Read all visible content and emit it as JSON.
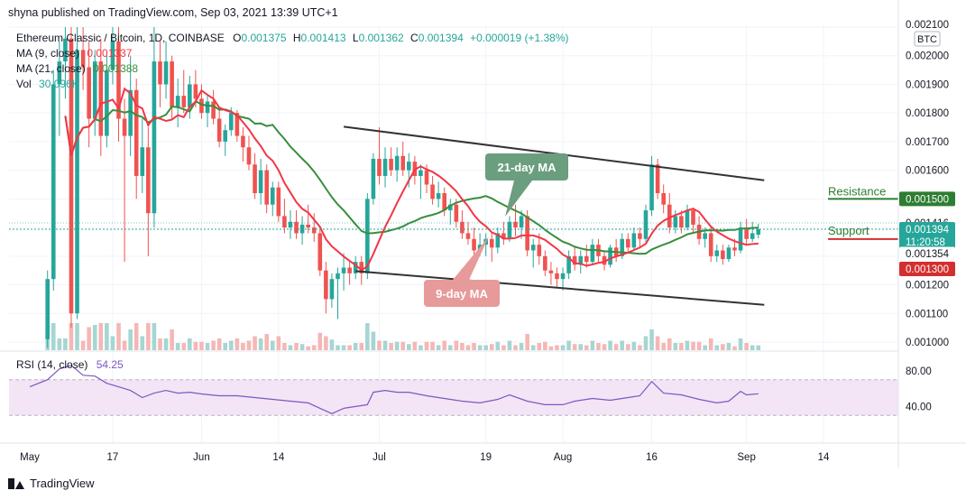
{
  "header": {
    "publisher": "shyna published on TradingView.com, Sep 03, 2021 13:39 UTC+1"
  },
  "legend": {
    "symbol": "Ethereum Classic / Bitcoin, 1D, COINBASE",
    "o_label": "O",
    "o": "0.001375",
    "h_label": "H",
    "h": "0.001413",
    "l_label": "L",
    "l": "0.001362",
    "c_label": "C",
    "c": "0.001394",
    "change": "+0.000019 (+1.38%)",
    "ma9_label": "MA (9, close)",
    "ma9": "0.001337",
    "ma21_label": "MA (21, close)",
    "ma21": "0.001388",
    "vol_label": "Vol",
    "vol": "30.096K"
  },
  "rsi_legend": {
    "label": "RSI (14, close)",
    "value": "54.25"
  },
  "currency": "BTC",
  "price_axis": [
    "0.002100",
    "0.002000",
    "0.001900",
    "0.001800",
    "0.001700",
    "0.001600",
    "0.001500",
    "0.001416",
    "0.001394",
    "0.001354",
    "0.001300",
    "0.001200",
    "0.001100",
    "0.001000"
  ],
  "countdown": "11:20:58",
  "rsi_axis": [
    "80.00",
    "40.00"
  ],
  "time_axis": [
    "May",
    "17",
    "Jun",
    "14",
    "Jul",
    "19",
    "Aug",
    "16",
    "Sep",
    "14"
  ],
  "annotations": {
    "ma21_callout": "21-day MA",
    "ma9_callout": "9-day MA",
    "resistance_label": "Resistance",
    "support_label": "Support"
  },
  "footer": {
    "brand": "TradingView"
  },
  "colors": {
    "up": "#26a69a",
    "down": "#ef5350",
    "ma9": "#f23645",
    "ma21": "#388e3c",
    "rsi": "#7e57c2",
    "rsi_band": "#f3e5f5",
    "resistance": "#2e7d32",
    "support": "#d32f2f",
    "callout21": "#6b9e7e",
    "callout9": "#e79a9a"
  },
  "chart_data": {
    "type": "candlestick",
    "x_range": [
      "2021-05-03",
      "2021-09-14"
    ],
    "ylim": [
      0.00096,
      0.00211
    ],
    "trendline_resistance": [
      [
        "2021-06-25",
        0.001752
      ],
      [
        "2021-09-04",
        0.001565
      ]
    ],
    "trendline_support": [
      [
        "2021-06-27",
        0.001248
      ],
      [
        "2021-09-04",
        0.00113
      ]
    ],
    "resistance_level": 0.0015,
    "support_level": 0.0013,
    "candles": [
      [
        "2021-05-06",
        0.00101,
        0.00125,
        0.00098,
        0.00122
      ],
      [
        "2021-05-07",
        0.00122,
        0.00195,
        0.00118,
        0.0019
      ],
      [
        "2021-05-08",
        0.0019,
        0.00205,
        0.00172,
        0.00198
      ],
      [
        "2021-05-09",
        0.00198,
        0.0021,
        0.00185,
        0.00206
      ],
      [
        "2021-05-10",
        0.00206,
        0.0021,
        0.00105,
        0.0011
      ],
      [
        "2021-05-11",
        0.0011,
        0.0021,
        0.00108,
        0.00202
      ],
      [
        "2021-05-12",
        0.00202,
        0.0021,
        0.00188,
        0.00196
      ],
      [
        "2021-05-13",
        0.00196,
        0.00205,
        0.00168,
        0.00178
      ],
      [
        "2021-05-14",
        0.00178,
        0.00202,
        0.00172,
        0.00198
      ],
      [
        "2021-05-15",
        0.00198,
        0.00206,
        0.00165,
        0.00172
      ],
      [
        "2021-05-16",
        0.00172,
        0.002,
        0.00168,
        0.00195
      ],
      [
        "2021-05-17",
        0.00195,
        0.0021,
        0.0019,
        0.00205
      ],
      [
        "2021-05-18",
        0.00205,
        0.0021,
        0.0017,
        0.00178
      ],
      [
        "2021-05-19",
        0.00178,
        0.00185,
        0.00128,
        0.00172
      ],
      [
        "2021-05-20",
        0.00172,
        0.002,
        0.00165,
        0.00188
      ],
      [
        "2021-05-21",
        0.00188,
        0.00192,
        0.0015,
        0.00158
      ],
      [
        "2021-05-22",
        0.00158,
        0.00178,
        0.00152,
        0.00168
      ],
      [
        "2021-05-23",
        0.00168,
        0.00175,
        0.0013,
        0.00145
      ],
      [
        "2021-05-24",
        0.00145,
        0.0021,
        0.0014,
        0.00198
      ],
      [
        "2021-05-25",
        0.00198,
        0.00205,
        0.00182,
        0.0019
      ],
      [
        "2021-05-26",
        0.0019,
        0.00205,
        0.00185,
        0.00198
      ],
      [
        "2021-05-27",
        0.00198,
        0.002,
        0.00178,
        0.00182
      ],
      [
        "2021-05-28",
        0.00182,
        0.00192,
        0.00175,
        0.00186
      ],
      [
        "2021-05-29",
        0.00186,
        0.00195,
        0.0018,
        0.00182
      ],
      [
        "2021-05-30",
        0.00182,
        0.00193,
        0.00178,
        0.0019
      ],
      [
        "2021-05-31",
        0.0019,
        0.00195,
        0.00182,
        0.00185
      ],
      [
        "2021-06-01",
        0.00185,
        0.0019,
        0.00178,
        0.0018
      ],
      [
        "2021-06-02",
        0.0018,
        0.00186,
        0.00175,
        0.00184
      ],
      [
        "2021-06-03",
        0.00184,
        0.00188,
        0.00176,
        0.00178
      ],
      [
        "2021-06-04",
        0.00178,
        0.00182,
        0.00168,
        0.0017
      ],
      [
        "2021-06-05",
        0.0017,
        0.00176,
        0.00165,
        0.00174
      ],
      [
        "2021-06-06",
        0.00174,
        0.00182,
        0.00172,
        0.0018
      ],
      [
        "2021-06-07",
        0.0018,
        0.00181,
        0.0017,
        0.00172
      ],
      [
        "2021-06-08",
        0.00172,
        0.00175,
        0.00163,
        0.00168
      ],
      [
        "2021-06-09",
        0.00168,
        0.00172,
        0.0016,
        0.00162
      ],
      [
        "2021-06-10",
        0.00162,
        0.00166,
        0.0015,
        0.00152
      ],
      [
        "2021-06-11",
        0.00152,
        0.00164,
        0.00148,
        0.0016
      ],
      [
        "2021-06-12",
        0.0016,
        0.00162,
        0.00145,
        0.00148
      ],
      [
        "2021-06-13",
        0.00148,
        0.00156,
        0.00144,
        0.00154
      ],
      [
        "2021-06-14",
        0.00154,
        0.00156,
        0.00142,
        0.00144
      ],
      [
        "2021-06-15",
        0.00144,
        0.0015,
        0.00138,
        0.0014
      ],
      [
        "2021-06-16",
        0.0014,
        0.00146,
        0.00136,
        0.00142
      ],
      [
        "2021-06-17",
        0.00142,
        0.00146,
        0.00136,
        0.00138
      ],
      [
        "2021-06-18",
        0.00138,
        0.00144,
        0.00134,
        0.00141
      ],
      [
        "2021-06-19",
        0.00141,
        0.00148,
        0.00138,
        0.0014
      ],
      [
        "2021-06-20",
        0.0014,
        0.00145,
        0.00135,
        0.00138
      ],
      [
        "2021-06-21",
        0.00138,
        0.0014,
        0.00123,
        0.00125
      ],
      [
        "2021-06-22",
        0.00125,
        0.00128,
        0.0011,
        0.00115
      ],
      [
        "2021-06-23",
        0.00115,
        0.00124,
        0.00112,
        0.00122
      ],
      [
        "2021-06-24",
        0.00122,
        0.00126,
        0.00108,
        0.00124
      ],
      [
        "2021-06-25",
        0.00124,
        0.00131,
        0.00118,
        0.00126
      ],
      [
        "2021-06-26",
        0.00126,
        0.00128,
        0.0012,
        0.00124
      ],
      [
        "2021-06-27",
        0.00124,
        0.0013,
        0.00122,
        0.00128
      ],
      [
        "2021-06-28",
        0.00128,
        0.0013,
        0.0012,
        0.00124
      ],
      [
        "2021-06-29",
        0.00124,
        0.00152,
        0.00122,
        0.0015
      ],
      [
        "2021-06-30",
        0.0015,
        0.00166,
        0.00148,
        0.00164
      ],
      [
        "2021-07-01",
        0.00164,
        0.00175,
        0.00155,
        0.00158
      ],
      [
        "2021-07-02",
        0.00158,
        0.00168,
        0.00154,
        0.00164
      ],
      [
        "2021-07-03",
        0.00164,
        0.00168,
        0.00158,
        0.0016
      ],
      [
        "2021-07-04",
        0.0016,
        0.00168,
        0.00156,
        0.00165
      ],
      [
        "2021-07-05",
        0.00165,
        0.0017,
        0.00158,
        0.0016
      ],
      [
        "2021-07-06",
        0.0016,
        0.00166,
        0.00154,
        0.00163
      ],
      [
        "2021-07-07",
        0.00163,
        0.00165,
        0.00155,
        0.00158
      ],
      [
        "2021-07-08",
        0.00158,
        0.00162,
        0.0015,
        0.0016
      ],
      [
        "2021-07-09",
        0.0016,
        0.00162,
        0.00152,
        0.00155
      ],
      [
        "2021-07-10",
        0.00155,
        0.00158,
        0.00148,
        0.0015
      ],
      [
        "2021-07-11",
        0.0015,
        0.00156,
        0.00147,
        0.00152
      ],
      [
        "2021-07-12",
        0.00152,
        0.00154,
        0.00144,
        0.00146
      ],
      [
        "2021-07-13",
        0.00146,
        0.0015,
        0.00141,
        0.00148
      ],
      [
        "2021-07-14",
        0.00148,
        0.0015,
        0.0014,
        0.00142
      ],
      [
        "2021-07-15",
        0.00142,
        0.00146,
        0.00136,
        0.00138
      ],
      [
        "2021-07-16",
        0.00138,
        0.00142,
        0.00134,
        0.00136
      ],
      [
        "2021-07-17",
        0.00136,
        0.0014,
        0.0013,
        0.00132
      ],
      [
        "2021-07-18",
        0.00132,
        0.00138,
        0.0013,
        0.00134
      ],
      [
        "2021-07-19",
        0.00134,
        0.00138,
        0.0013,
        0.00136
      ],
      [
        "2021-07-20",
        0.00136,
        0.00138,
        0.00128,
        0.00133
      ],
      [
        "2021-07-21",
        0.00133,
        0.0014,
        0.00131,
        0.00138
      ],
      [
        "2021-07-22",
        0.00138,
        0.00142,
        0.00134,
        0.00136
      ],
      [
        "2021-07-23",
        0.00136,
        0.00144,
        0.00135,
        0.00142
      ],
      [
        "2021-07-24",
        0.00142,
        0.00148,
        0.00137,
        0.0014
      ],
      [
        "2021-07-25",
        0.0014,
        0.00146,
        0.00136,
        0.00144
      ],
      [
        "2021-07-26",
        0.00144,
        0.00146,
        0.0013,
        0.00132
      ],
      [
        "2021-07-27",
        0.00132,
        0.00136,
        0.00126,
        0.00134
      ],
      [
        "2021-07-28",
        0.00134,
        0.00138,
        0.00127,
        0.0013
      ],
      [
        "2021-07-29",
        0.0013,
        0.00132,
        0.00123,
        0.00125
      ],
      [
        "2021-07-30",
        0.00125,
        0.00128,
        0.0012,
        0.00124
      ],
      [
        "2021-07-31",
        0.00124,
        0.00126,
        0.00119,
        0.00122
      ],
      [
        "2021-08-01",
        0.00122,
        0.00126,
        0.00118,
        0.00124
      ],
      [
        "2021-08-02",
        0.00124,
        0.00132,
        0.00122,
        0.0013
      ],
      [
        "2021-08-03",
        0.0013,
        0.00133,
        0.00125,
        0.00127
      ],
      [
        "2021-08-04",
        0.00127,
        0.00132,
        0.00124,
        0.0013
      ],
      [
        "2021-08-05",
        0.0013,
        0.00134,
        0.00126,
        0.00128
      ],
      [
        "2021-08-06",
        0.00128,
        0.00136,
        0.00127,
        0.00134
      ],
      [
        "2021-08-07",
        0.00134,
        0.00136,
        0.00128,
        0.0013
      ],
      [
        "2021-08-08",
        0.0013,
        0.00132,
        0.00125,
        0.00127
      ],
      [
        "2021-08-09",
        0.00127,
        0.00134,
        0.00126,
        0.00133
      ],
      [
        "2021-08-10",
        0.00133,
        0.00136,
        0.00128,
        0.0013
      ],
      [
        "2021-08-11",
        0.0013,
        0.00138,
        0.00129,
        0.00136
      ],
      [
        "2021-08-12",
        0.00136,
        0.00138,
        0.00131,
        0.00133
      ],
      [
        "2021-08-13",
        0.00133,
        0.0014,
        0.00132,
        0.00138
      ],
      [
        "2021-08-14",
        0.00138,
        0.0014,
        0.00133,
        0.00136
      ],
      [
        "2021-08-15",
        0.00136,
        0.00148,
        0.00135,
        0.00146
      ],
      [
        "2021-08-16",
        0.00146,
        0.00165,
        0.00144,
        0.00162
      ],
      [
        "2021-08-17",
        0.00162,
        0.00164,
        0.0015,
        0.00152
      ],
      [
        "2021-08-18",
        0.00152,
        0.00155,
        0.00145,
        0.00148
      ],
      [
        "2021-08-19",
        0.00148,
        0.00152,
        0.00138,
        0.0014
      ],
      [
        "2021-08-20",
        0.0014,
        0.00146,
        0.00138,
        0.00144
      ],
      [
        "2021-08-21",
        0.00144,
        0.00146,
        0.00138,
        0.0014
      ],
      [
        "2021-08-22",
        0.0014,
        0.00148,
        0.00139,
        0.00146
      ],
      [
        "2021-08-23",
        0.00146,
        0.00147,
        0.00138,
        0.00141
      ],
      [
        "2021-08-24",
        0.00141,
        0.00144,
        0.00134,
        0.00136
      ],
      [
        "2021-08-25",
        0.00136,
        0.0014,
        0.00133,
        0.00138
      ],
      [
        "2021-08-26",
        0.00138,
        0.0014,
        0.00128,
        0.0013
      ],
      [
        "2021-08-27",
        0.0013,
        0.00134,
        0.00128,
        0.00132
      ],
      [
        "2021-08-28",
        0.00132,
        0.00134,
        0.00127,
        0.00129
      ],
      [
        "2021-08-29",
        0.00129,
        0.00134,
        0.00128,
        0.00133
      ],
      [
        "2021-08-30",
        0.00133,
        0.00136,
        0.0013,
        0.00132
      ],
      [
        "2021-08-31",
        0.00132,
        0.00142,
        0.00131,
        0.0014
      ],
      [
        "2021-09-01",
        0.0014,
        0.00143,
        0.00134,
        0.00136
      ],
      [
        "2021-09-02",
        0.00136,
        0.00142,
        0.00135,
        0.00138
      ],
      [
        "2021-09-03",
        0.001375,
        0.001413,
        0.001362,
        0.001394
      ]
    ],
    "rsi": [
      [
        "2021-05-03",
        62
      ],
      [
        "2021-05-06",
        70
      ],
      [
        "2021-05-08",
        82
      ],
      [
        "2021-05-10",
        86
      ],
      [
        "2021-05-12",
        75
      ],
      [
        "2021-05-14",
        74
      ],
      [
        "2021-05-16",
        66
      ],
      [
        "2021-05-18",
        62
      ],
      [
        "2021-05-20",
        58
      ],
      [
        "2021-05-22",
        50
      ],
      [
        "2021-05-24",
        55
      ],
      [
        "2021-05-26",
        58
      ],
      [
        "2021-05-28",
        55
      ],
      [
        "2021-05-30",
        56
      ],
      [
        "2021-06-01",
        54
      ],
      [
        "2021-06-04",
        52
      ],
      [
        "2021-06-07",
        52
      ],
      [
        "2021-06-10",
        50
      ],
      [
        "2021-06-13",
        48
      ],
      [
        "2021-06-16",
        46
      ],
      [
        "2021-06-19",
        44
      ],
      [
        "2021-06-21",
        38
      ],
      [
        "2021-06-23",
        32
      ],
      [
        "2021-06-25",
        38
      ],
      [
        "2021-06-27",
        40
      ],
      [
        "2021-06-29",
        42
      ],
      [
        "2021-06-30",
        56
      ],
      [
        "2021-07-02",
        58
      ],
      [
        "2021-07-04",
        56
      ],
      [
        "2021-07-06",
        56
      ],
      [
        "2021-07-09",
        52
      ],
      [
        "2021-07-12",
        49
      ],
      [
        "2021-07-15",
        46
      ],
      [
        "2021-07-18",
        44
      ],
      [
        "2021-07-21",
        48
      ],
      [
        "2021-07-23",
        53
      ],
      [
        "2021-07-26",
        46
      ],
      [
        "2021-07-29",
        42
      ],
      [
        "2021-08-01",
        42
      ],
      [
        "2021-08-03",
        46
      ],
      [
        "2021-08-06",
        49
      ],
      [
        "2021-08-09",
        47
      ],
      [
        "2021-08-12",
        50
      ],
      [
        "2021-08-14",
        52
      ],
      [
        "2021-08-16",
        68
      ],
      [
        "2021-08-18",
        55
      ],
      [
        "2021-08-21",
        53
      ],
      [
        "2021-08-24",
        48
      ],
      [
        "2021-08-27",
        44
      ],
      [
        "2021-08-29",
        46
      ],
      [
        "2021-08-31",
        57
      ],
      [
        "2021-09-01",
        53
      ],
      [
        "2021-09-03",
        54.25
      ]
    ]
  }
}
